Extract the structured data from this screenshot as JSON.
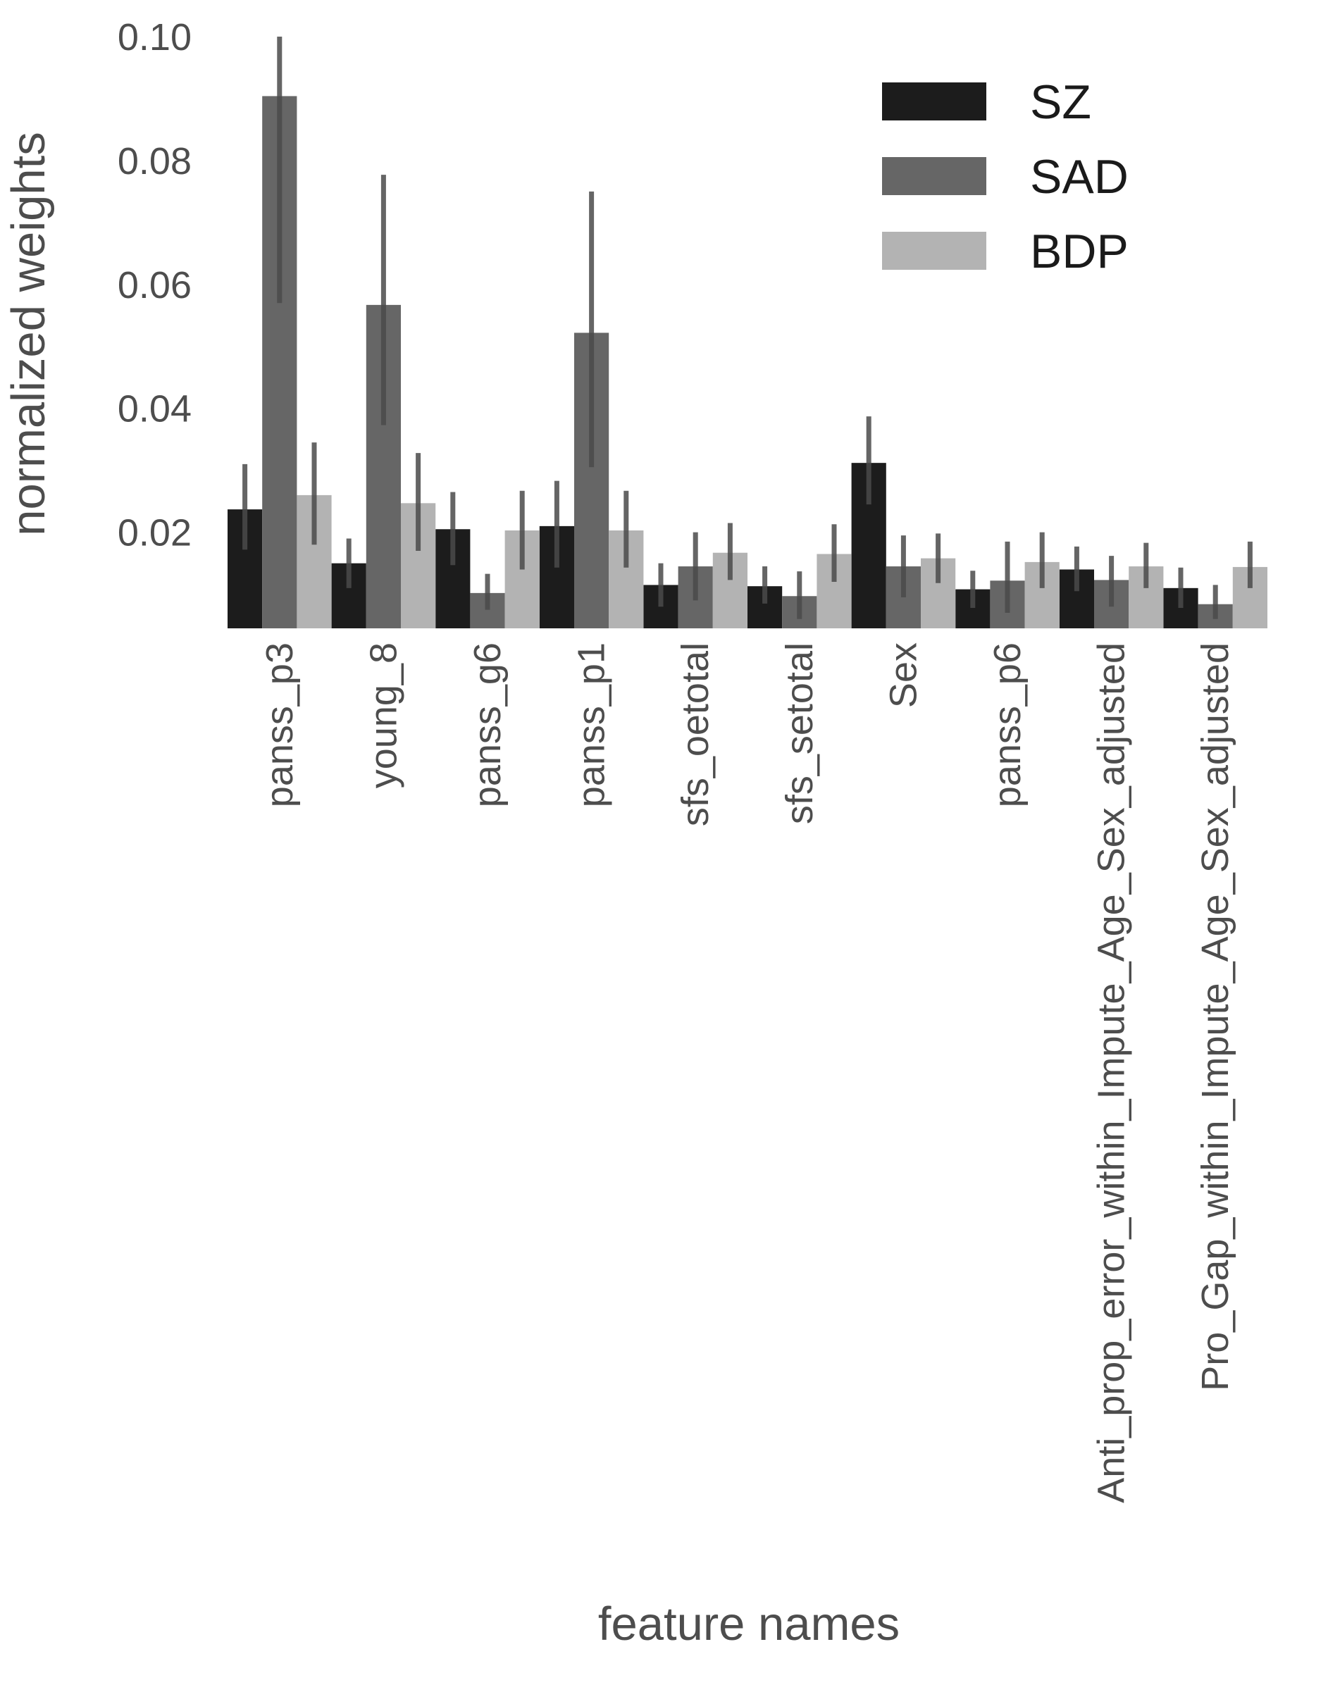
{
  "chart_data": {
    "type": "bar",
    "title": "",
    "xlabel": "feature names",
    "ylabel": "normalized weights",
    "ylim": [
      0.0045,
      0.1
    ],
    "yticks": [
      "0.10",
      "0.08",
      "0.06",
      "0.04",
      "0.02"
    ],
    "grid": false,
    "legend_position": "top-right",
    "categories": [
      "panss_p3",
      "young_8",
      "panss_g6",
      "panss_p1",
      "sfs_oetotal",
      "sfs_setotal",
      "Sex",
      "panss_p6",
      "Anti_prop_error_within_Impute_Age_Sex_adjusted",
      "Pro_Gap_within_Impute_Age_Sex_adjusted"
    ],
    "series": [
      {
        "name": "SZ",
        "color": "#1c1c1c",
        "values": [
          0.0237,
          0.015,
          0.0205,
          0.021,
          0.0115,
          0.0113,
          0.0312,
          0.0108,
          0.014,
          0.011
        ],
        "error_low": [
          0.0172,
          0.011,
          0.0147,
          0.0143,
          0.008,
          0.0085,
          0.0245,
          0.0078,
          0.0105,
          0.0078
        ],
        "error_high": [
          0.031,
          0.019,
          0.0265,
          0.0283,
          0.015,
          0.0145,
          0.0387,
          0.0138,
          0.0177,
          0.0143
        ]
      },
      {
        "name": "SAD",
        "color": "#666666",
        "values": [
          0.0904,
          0.0567,
          0.0102,
          0.0522,
          0.0145,
          0.0097,
          0.0145,
          0.0122,
          0.0123,
          0.0084
        ],
        "error_low": [
          0.057,
          0.0373,
          0.0075,
          0.0305,
          0.009,
          0.006,
          0.0095,
          0.007,
          0.008,
          0.006
        ],
        "error_high": [
          0.1,
          0.0777,
          0.0133,
          0.075,
          0.02,
          0.0137,
          0.0195,
          0.0185,
          0.0162,
          0.0115
        ]
      },
      {
        "name": "BDP",
        "color": "#b3b3b3",
        "values": [
          0.026,
          0.0247,
          0.0203,
          0.0203,
          0.0167,
          0.0165,
          0.0158,
          0.0152,
          0.0145,
          0.0144
        ],
        "error_low": [
          0.018,
          0.017,
          0.014,
          0.0143,
          0.0123,
          0.012,
          0.0118,
          0.011,
          0.011,
          0.011
        ],
        "error_high": [
          0.0345,
          0.0328,
          0.0267,
          0.0267,
          0.0215,
          0.0213,
          0.0198,
          0.02,
          0.0183,
          0.0185
        ]
      }
    ]
  }
}
